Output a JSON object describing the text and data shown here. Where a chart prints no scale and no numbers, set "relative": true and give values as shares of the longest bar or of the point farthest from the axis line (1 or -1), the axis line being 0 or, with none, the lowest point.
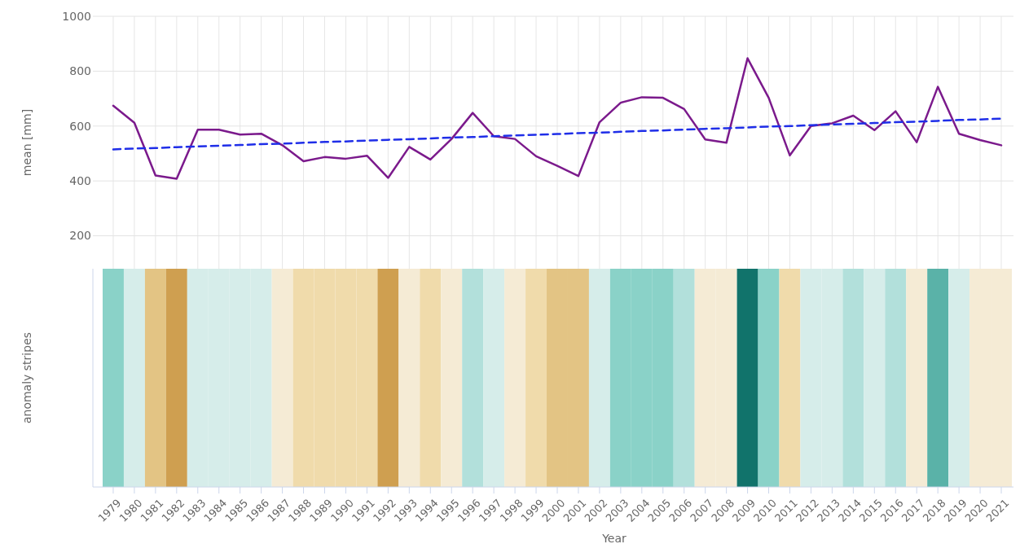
{
  "chart_data": [
    {
      "type": "line",
      "ylabel": "mean [mm]",
      "categories": [
        "1979",
        "1980",
        "1981",
        "1982",
        "1983",
        "1984",
        "1985",
        "1986",
        "1987",
        "1988",
        "1989",
        "1990",
        "1991",
        "1992",
        "1993",
        "1994",
        "1995",
        "1996",
        "1997",
        "1998",
        "1999",
        "2000",
        "2001",
        "2002",
        "2003",
        "2004",
        "2005",
        "2006",
        "2007",
        "2008",
        "2009",
        "2010",
        "2011",
        "2012",
        "2013",
        "2014",
        "2015",
        "2016",
        "2017",
        "2018",
        "2019",
        "2020",
        "2021"
      ],
      "series": [
        {
          "color": "#7b1a8c",
          "values": [
            674,
            612,
            420,
            408,
            587,
            587,
            569,
            572,
            530,
            472,
            487,
            481,
            492,
            411,
            524,
            478,
            553,
            648,
            563,
            553,
            490,
            455,
            418,
            614,
            685,
            705,
            703,
            662,
            551,
            539,
            847,
            703,
            493,
            600,
            610,
            638,
            585,
            654,
            541,
            743,
            572,
            549,
            530
          ]
        },
        {
          "color": "#1f2ee8",
          "line_style": "dashed",
          "values": [
            515,
            518,
            520,
            523,
            526,
            528,
            531,
            534,
            536,
            539,
            542,
            544,
            547,
            550,
            552,
            555,
            558,
            560,
            563,
            566,
            568,
            571,
            574,
            576,
            579,
            582,
            584,
            587,
            590,
            592,
            595,
            598,
            600,
            603,
            606,
            608,
            611,
            614,
            616,
            619,
            622,
            624,
            627
          ]
        }
      ],
      "ylim": [
        80,
        1000
      ],
      "yticks": [
        200,
        400,
        600,
        800,
        1000
      ],
      "grid": true,
      "tick_labels": "y",
      "marker": "none",
      "line_style": "solid"
    },
    {
      "type": "bar",
      "relative": true,
      "ylabel": "anomaly stripes",
      "xlabel": "Year",
      "tick_labels": "x",
      "categories": [
        "1979",
        "1980",
        "1981",
        "1982",
        "1983",
        "1984",
        "1985",
        "1986",
        "1987",
        "1988",
        "1989",
        "1990",
        "1991",
        "1992",
        "1993",
        "1994",
        "1995",
        "1996",
        "1997",
        "1998",
        "1999",
        "2000",
        "2001",
        "2002",
        "2003",
        "2004",
        "2005",
        "2006",
        "2007",
        "2008",
        "2009",
        "2010",
        "2011",
        "2012",
        "2013",
        "2014",
        "2015",
        "2016",
        "2017",
        "2018",
        "2019",
        "2020",
        "2021"
      ],
      "values": [
        1,
        1,
        1,
        1,
        1,
        1,
        1,
        1,
        1,
        1,
        1,
        1,
        1,
        1,
        1,
        1,
        1,
        1,
        1,
        1,
        1,
        1,
        1,
        1,
        1,
        1,
        1,
        1,
        1,
        1,
        1,
        1,
        1,
        1,
        1,
        1,
        1,
        1,
        1,
        1,
        1,
        1,
        1
      ],
      "colors": [
        "#8ad2c8",
        "#d6edea",
        "#e3c484",
        "#cf9f50",
        "#d6edea",
        "#d6edea",
        "#d6edea",
        "#d6edea",
        "#f5ebd5",
        "#f0dbab",
        "#f0dbab",
        "#f0dbab",
        "#f0dbab",
        "#cf9f50",
        "#f5ebd5",
        "#f0dbab",
        "#f5ebd5",
        "#b2e0db",
        "#d6edea",
        "#f5ebd5",
        "#f0dbab",
        "#e3c484",
        "#e3c484",
        "#d6edea",
        "#8ad2c8",
        "#8ad2c8",
        "#8ad2c8",
        "#b2e0db",
        "#f5ebd5",
        "#f5ebd5",
        "#11736b",
        "#8ad2c8",
        "#f0dbab",
        "#d6edea",
        "#d6edea",
        "#b2e0db",
        "#d6edea",
        "#b2e0db",
        "#f5ebd5",
        "#5ab2a8",
        "#d6edea",
        "#f5ebd5",
        "#f5ebd5"
      ]
    }
  ]
}
